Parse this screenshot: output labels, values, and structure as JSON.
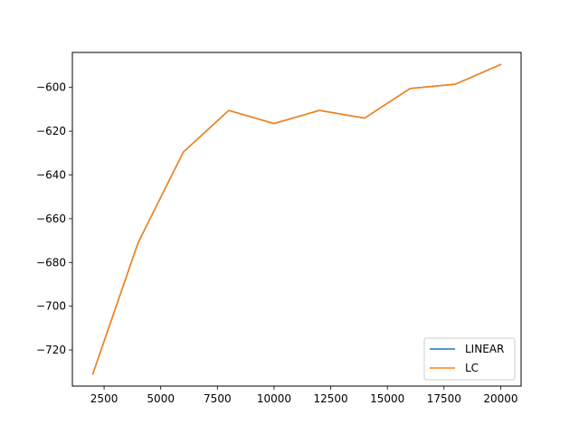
{
  "chart_data": {
    "type": "line",
    "x": [
      2000,
      4000,
      6000,
      8000,
      10000,
      12000,
      14000,
      16000,
      18000,
      20000
    ],
    "series": [
      {
        "name": "LINEAR",
        "color": "#1f77b4",
        "values": [
          -731.0,
          -671.0,
          -629.5,
          -610.5,
          -616.5,
          -610.5,
          -614.0,
          -600.5,
          -598.5,
          -589.5
        ]
      },
      {
        "name": "LC",
        "color": "#ff7f0e",
        "values": [
          -731.0,
          -671.0,
          -629.5,
          -610.5,
          -616.5,
          -610.5,
          -614.0,
          -600.5,
          -598.5,
          -589.5
        ]
      }
    ],
    "title": "",
    "xlabel": "",
    "ylabel": "",
    "xlim": [
      1100,
      20900
    ],
    "ylim": [
      -736.5,
      -584.0
    ],
    "xticks": [
      2500,
      5000,
      7500,
      10000,
      12500,
      15000,
      17500,
      20000
    ],
    "yticks": [
      -720,
      -700,
      -680,
      -660,
      -640,
      -620,
      -600
    ],
    "grid": false,
    "legend_position": "lower-right"
  }
}
